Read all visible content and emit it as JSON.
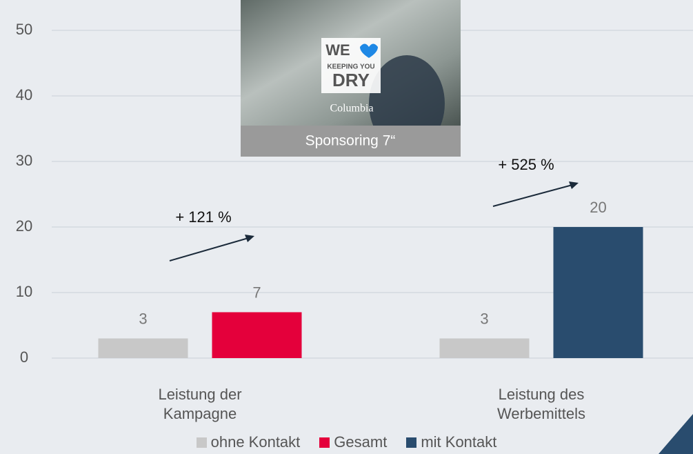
{
  "chart_data": {
    "type": "bar",
    "categories": [
      "Leistung der Kampagne",
      "Leistung des Werbemittels"
    ],
    "series": [
      {
        "name": "ohne Kontakt",
        "color": "#c8c8c8",
        "values": [
          3,
          3
        ]
      },
      {
        "name": "Gesamt",
        "color": "#e4003b",
        "values": [
          7,
          null
        ]
      },
      {
        "name": "mit Kontakt",
        "color": "#294c6e",
        "values": [
          null,
          20
        ]
      }
    ],
    "ylim": [
      0,
      50
    ],
    "yticks": [
      0,
      10,
      20,
      30,
      40,
      50
    ],
    "grid": true,
    "annotations": [
      "+ 121 %",
      "+ 525 %"
    ],
    "image": {
      "caption": "Sponsoring 7“",
      "logo_lines": [
        "WE",
        "KEEPING YOU",
        "DRY"
      ],
      "brand": "Columbia"
    }
  }
}
